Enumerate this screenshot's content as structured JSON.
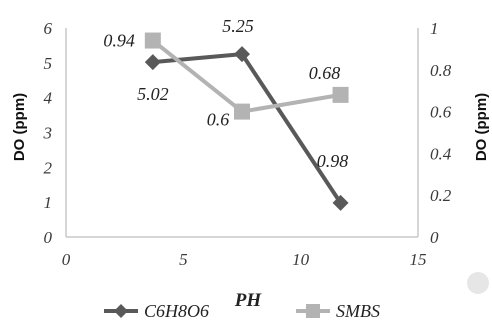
{
  "chart_data": {
    "type": "line",
    "title": "",
    "xlabel": "PH",
    "ylabel_left": "DO (ppm)",
    "ylabel_right": "DO (ppm)",
    "xlim": [
      0,
      15
    ],
    "ylim_left": [
      0,
      6
    ],
    "ylim_right": [
      0,
      1
    ],
    "x_ticks": [
      "0",
      "5",
      "10",
      "15"
    ],
    "y_left_ticks": [
      "0",
      "1",
      "2",
      "3",
      "4",
      "5",
      "6"
    ],
    "y_right_ticks": [
      "0",
      "0.2",
      "0.4",
      "0.6",
      "0.8",
      "1"
    ],
    "grid": false,
    "legend_position": "bottom",
    "series": [
      {
        "name": "C6H8O6",
        "axis": "left",
        "color": "#595959",
        "marker": "diamond",
        "x": [
          3.7,
          7.5,
          11.7
        ],
        "y": [
          5.02,
          5.25,
          0.98
        ],
        "labels": [
          "5.02",
          "5.25",
          "0.98"
        ]
      },
      {
        "name": "SMBS",
        "axis": "right",
        "color": "#b3b3b3",
        "marker": "square",
        "x": [
          3.7,
          7.5,
          11.7
        ],
        "y": [
          0.94,
          0.6,
          0.68
        ],
        "labels": [
          "0.94",
          "0.6",
          "0.68"
        ]
      }
    ]
  }
}
